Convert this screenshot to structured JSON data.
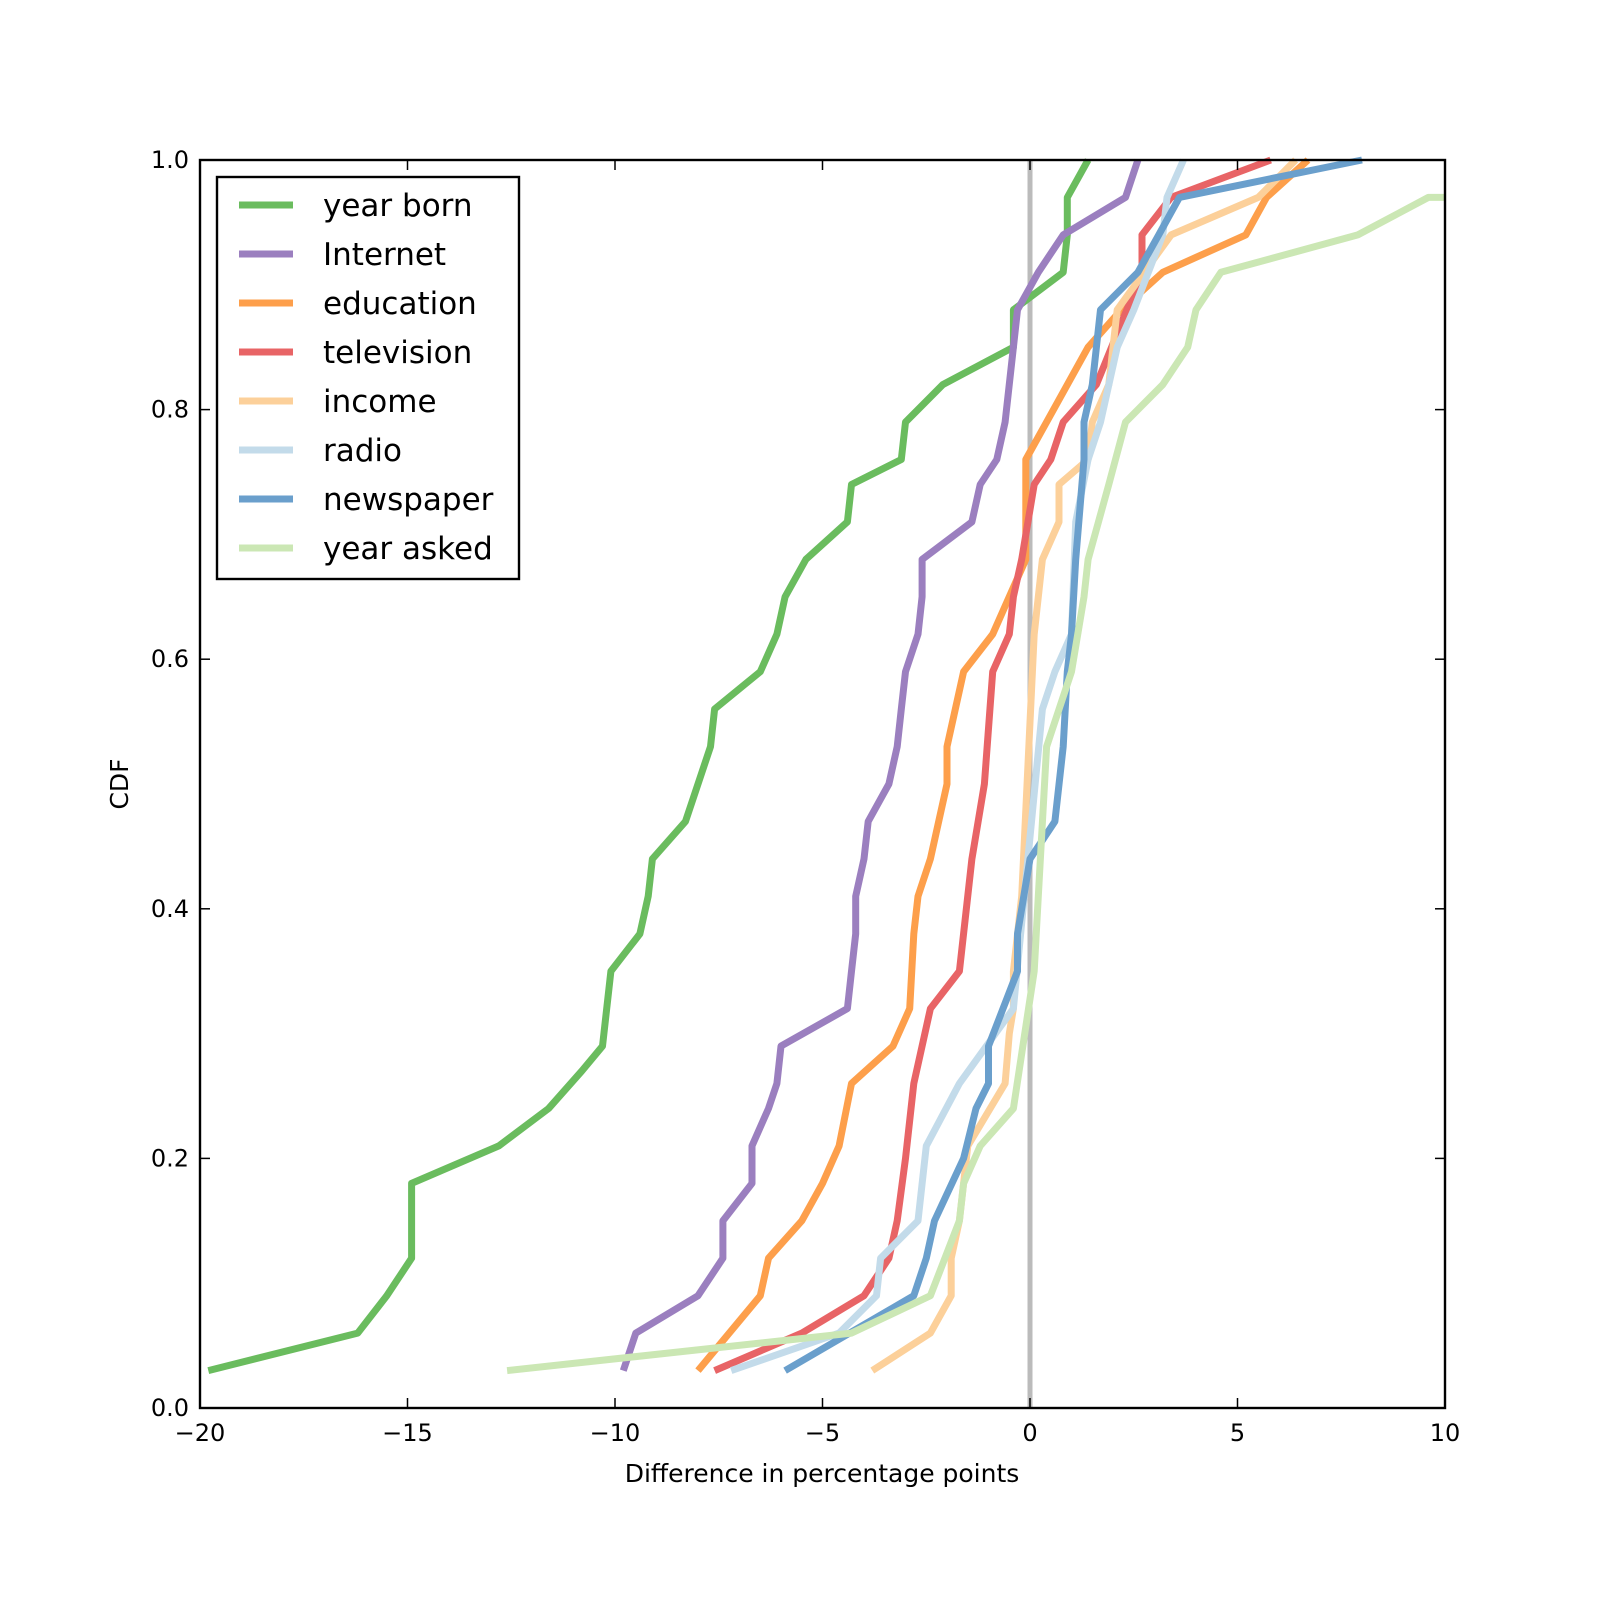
{
  "chart_data": {
    "type": "line",
    "title": "",
    "xlabel": "Difference in percentage points",
    "ylabel": "CDF",
    "xlim": [
      -20,
      10
    ],
    "ylim": [
      0.0,
      1.0
    ],
    "xticks": [
      -20,
      -15,
      -10,
      -5,
      0,
      5,
      10
    ],
    "xtick_labels": [
      "−20",
      "−15",
      "−10",
      "−5",
      "0",
      "5",
      "10"
    ],
    "yticks": [
      0.0,
      0.2,
      0.4,
      0.6,
      0.8,
      1.0
    ],
    "ytick_labels": [
      "0.0",
      "0.2",
      "0.4",
      "0.6",
      "0.8",
      "1.0"
    ],
    "grid": false,
    "legend_position": "top-left",
    "reference_line": {
      "x": 0,
      "color": "#bbbbbb"
    },
    "series": [
      {
        "name": "year born",
        "color": "#6abc5e",
        "points": [
          [
            -19.8,
            0.03
          ],
          [
            -16.2,
            0.06
          ],
          [
            -15.5,
            0.09
          ],
          [
            -14.9,
            0.12
          ],
          [
            -14.9,
            0.18
          ],
          [
            -12.8,
            0.21
          ],
          [
            -11.6,
            0.24
          ],
          [
            -10.8,
            0.27
          ],
          [
            -10.3,
            0.29
          ],
          [
            -10.2,
            0.32
          ],
          [
            -10.1,
            0.35
          ],
          [
            -9.4,
            0.38
          ],
          [
            -9.2,
            0.41
          ],
          [
            -9.1,
            0.44
          ],
          [
            -8.3,
            0.47
          ],
          [
            -7.7,
            0.53
          ],
          [
            -7.6,
            0.56
          ],
          [
            -6.5,
            0.59
          ],
          [
            -6.1,
            0.62
          ],
          [
            -5.9,
            0.65
          ],
          [
            -5.4,
            0.68
          ],
          [
            -4.4,
            0.71
          ],
          [
            -4.3,
            0.74
          ],
          [
            -3.1,
            0.76
          ],
          [
            -3.0,
            0.79
          ],
          [
            -2.1,
            0.82
          ],
          [
            -0.4,
            0.85
          ],
          [
            -0.4,
            0.88
          ],
          [
            0.8,
            0.91
          ],
          [
            0.9,
            0.94
          ],
          [
            0.9,
            0.97
          ],
          [
            1.4,
            1.0
          ]
        ]
      },
      {
        "name": "Internet",
        "color": "#9b7fbf",
        "points": [
          [
            -9.8,
            0.03
          ],
          [
            -9.5,
            0.06
          ],
          [
            -8.0,
            0.09
          ],
          [
            -7.4,
            0.12
          ],
          [
            -7.4,
            0.15
          ],
          [
            -6.7,
            0.18
          ],
          [
            -6.7,
            0.21
          ],
          [
            -6.3,
            0.24
          ],
          [
            -6.1,
            0.26
          ],
          [
            -6.0,
            0.29
          ],
          [
            -4.4,
            0.32
          ],
          [
            -4.3,
            0.35
          ],
          [
            -4.2,
            0.38
          ],
          [
            -4.2,
            0.41
          ],
          [
            -4.0,
            0.44
          ],
          [
            -3.9,
            0.47
          ],
          [
            -3.4,
            0.5
          ],
          [
            -3.2,
            0.53
          ],
          [
            -3.1,
            0.56
          ],
          [
            -3.0,
            0.59
          ],
          [
            -2.7,
            0.62
          ],
          [
            -2.6,
            0.65
          ],
          [
            -2.6,
            0.68
          ],
          [
            -1.4,
            0.71
          ],
          [
            -1.2,
            0.74
          ],
          [
            -0.8,
            0.76
          ],
          [
            -0.6,
            0.79
          ],
          [
            -0.4,
            0.85
          ],
          [
            -0.3,
            0.88
          ],
          [
            0.2,
            0.91
          ],
          [
            0.8,
            0.94
          ],
          [
            2.3,
            0.97
          ],
          [
            2.6,
            1.0
          ]
        ]
      },
      {
        "name": "education",
        "color": "#fd9f4b",
        "points": [
          [
            -8.0,
            0.03
          ],
          [
            -6.5,
            0.09
          ],
          [
            -6.3,
            0.12
          ],
          [
            -5.5,
            0.15
          ],
          [
            -5.0,
            0.18
          ],
          [
            -4.6,
            0.21
          ],
          [
            -4.3,
            0.26
          ],
          [
            -3.3,
            0.29
          ],
          [
            -2.9,
            0.32
          ],
          [
            -2.8,
            0.38
          ],
          [
            -2.7,
            0.41
          ],
          [
            -2.4,
            0.44
          ],
          [
            -2.0,
            0.5
          ],
          [
            -2.0,
            0.53
          ],
          [
            -1.6,
            0.59
          ],
          [
            -0.9,
            0.62
          ],
          [
            -0.1,
            0.68
          ],
          [
            -0.1,
            0.76
          ],
          [
            0.4,
            0.79
          ],
          [
            1.4,
            0.85
          ],
          [
            2.2,
            0.88
          ],
          [
            3.2,
            0.91
          ],
          [
            5.2,
            0.94
          ],
          [
            5.7,
            0.97
          ],
          [
            6.7,
            1.0
          ]
        ]
      },
      {
        "name": "television",
        "color": "#e86466",
        "points": [
          [
            -7.6,
            0.03
          ],
          [
            -5.5,
            0.06
          ],
          [
            -4.0,
            0.09
          ],
          [
            -3.4,
            0.12
          ],
          [
            -3.2,
            0.15
          ],
          [
            -3.0,
            0.2
          ],
          [
            -2.8,
            0.26
          ],
          [
            -2.4,
            0.32
          ],
          [
            -1.7,
            0.35
          ],
          [
            -1.4,
            0.44
          ],
          [
            -1.1,
            0.5
          ],
          [
            -0.9,
            0.59
          ],
          [
            -0.5,
            0.62
          ],
          [
            -0.4,
            0.65
          ],
          [
            -0.2,
            0.68
          ],
          [
            0.1,
            0.74
          ],
          [
            0.5,
            0.76
          ],
          [
            0.8,
            0.79
          ],
          [
            1.6,
            0.82
          ],
          [
            2.7,
            0.91
          ],
          [
            2.7,
            0.94
          ],
          [
            3.4,
            0.97
          ],
          [
            5.8,
            1.0
          ]
        ]
      },
      {
        "name": "income",
        "color": "#fcd09a",
        "points": [
          [
            -3.8,
            0.03
          ],
          [
            -2.4,
            0.06
          ],
          [
            -1.9,
            0.09
          ],
          [
            -1.9,
            0.12
          ],
          [
            -1.7,
            0.15
          ],
          [
            -1.5,
            0.21
          ],
          [
            -0.6,
            0.26
          ],
          [
            -0.5,
            0.3
          ],
          [
            -0.4,
            0.32
          ],
          [
            -0.4,
            0.35
          ],
          [
            -0.2,
            0.41
          ],
          [
            0.1,
            0.62
          ],
          [
            0.3,
            0.68
          ],
          [
            0.7,
            0.71
          ],
          [
            0.7,
            0.74
          ],
          [
            1.4,
            0.76
          ],
          [
            1.5,
            0.79
          ],
          [
            1.9,
            0.82
          ],
          [
            2.1,
            0.88
          ],
          [
            3.4,
            0.94
          ],
          [
            5.5,
            0.97
          ],
          [
            6.4,
            1.0
          ]
        ]
      },
      {
        "name": "radio",
        "color": "#c3dbea",
        "points": [
          [
            -7.2,
            0.03
          ],
          [
            -4.6,
            0.06
          ],
          [
            -3.7,
            0.09
          ],
          [
            -3.6,
            0.12
          ],
          [
            -2.7,
            0.15
          ],
          [
            -2.5,
            0.21
          ],
          [
            -1.7,
            0.26
          ],
          [
            -0.4,
            0.32
          ],
          [
            0.3,
            0.56
          ],
          [
            0.6,
            0.59
          ],
          [
            1.0,
            0.62
          ],
          [
            1.1,
            0.71
          ],
          [
            1.4,
            0.76
          ],
          [
            1.7,
            0.79
          ],
          [
            2.1,
            0.85
          ],
          [
            2.5,
            0.88
          ],
          [
            3.2,
            0.94
          ],
          [
            3.3,
            0.97
          ],
          [
            3.7,
            1.0
          ]
        ]
      },
      {
        "name": "newspaper",
        "color": "#6a9fcc",
        "points": [
          [
            -5.9,
            0.03
          ],
          [
            -2.8,
            0.09
          ],
          [
            -2.5,
            0.12
          ],
          [
            -2.3,
            0.15
          ],
          [
            -1.6,
            0.2
          ],
          [
            -1.3,
            0.24
          ],
          [
            -1.0,
            0.26
          ],
          [
            -1.0,
            0.29
          ],
          [
            -0.3,
            0.35
          ],
          [
            -0.3,
            0.38
          ],
          [
            0.0,
            0.44
          ],
          [
            0.6,
            0.47
          ],
          [
            0.8,
            0.53
          ],
          [
            0.9,
            0.59
          ],
          [
            1.0,
            0.62
          ],
          [
            1.1,
            0.68
          ],
          [
            1.3,
            0.76
          ],
          [
            1.3,
            0.79
          ],
          [
            1.5,
            0.82
          ],
          [
            1.6,
            0.85
          ],
          [
            1.7,
            0.88
          ],
          [
            2.6,
            0.91
          ],
          [
            3.1,
            0.94
          ],
          [
            3.6,
            0.97
          ],
          [
            8.0,
            1.0
          ]
        ]
      },
      {
        "name": "year asked",
        "color": "#cbe7b4",
        "points": [
          [
            -12.6,
            0.03
          ],
          [
            -4.3,
            0.06
          ],
          [
            -2.4,
            0.09
          ],
          [
            -1.7,
            0.15
          ],
          [
            -1.6,
            0.18
          ],
          [
            -1.2,
            0.21
          ],
          [
            -0.4,
            0.24
          ],
          [
            0.1,
            0.35
          ],
          [
            0.2,
            0.41
          ],
          [
            0.4,
            0.53
          ],
          [
            1.0,
            0.59
          ],
          [
            1.3,
            0.65
          ],
          [
            1.4,
            0.68
          ],
          [
            1.9,
            0.74
          ],
          [
            2.3,
            0.79
          ],
          [
            3.2,
            0.82
          ],
          [
            3.8,
            0.85
          ],
          [
            4.0,
            0.88
          ],
          [
            4.6,
            0.91
          ],
          [
            7.9,
            0.94
          ],
          [
            9.6,
            0.97
          ],
          [
            10.0,
            0.97
          ]
        ]
      }
    ]
  }
}
